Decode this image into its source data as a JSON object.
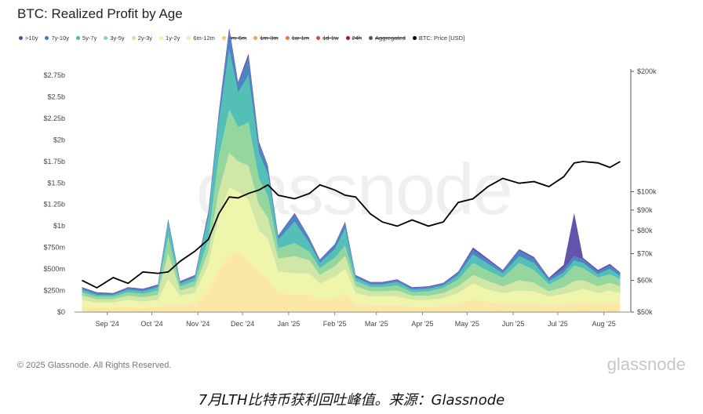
{
  "title": "BTC: Realized Profit by Age",
  "watermark": "glassnode",
  "copyright": "© 2025 Glassnode. All Rights Reserved.",
  "brand": "glassnode",
  "caption": "7月LTH比特币获利回吐峰值。来源：Glassnode",
  "legend": [
    {
      "label": ">10y",
      "color": "#5b4aa6",
      "active": true
    },
    {
      "label": "7y-10y",
      "color": "#3f7fbf",
      "active": true
    },
    {
      "label": "5y-7y",
      "color": "#4bbcb3",
      "active": true
    },
    {
      "label": "3y-5y",
      "color": "#8fd49a",
      "active": true
    },
    {
      "label": "2y-3y",
      "color": "#cfe6a0",
      "active": true
    },
    {
      "label": "1y-2y",
      "color": "#eef5a6",
      "active": true
    },
    {
      "label": "6m-12m",
      "color": "#fbe7a3",
      "active": true
    },
    {
      "label": "3m-6m",
      "color": "#f6c777",
      "active": false
    },
    {
      "label": "1m-3m",
      "color": "#f4a35c",
      "active": false
    },
    {
      "label": "1w-1m",
      "color": "#ee7547",
      "active": false
    },
    {
      "label": "1d-1w",
      "color": "#d9453c",
      "active": false
    },
    {
      "label": "24h",
      "color": "#a8153b",
      "active": false
    },
    {
      "label": "Aggregated",
      "color": "#555555",
      "active": false
    },
    {
      "label": "BTC: Price [USD]",
      "color": "#000000",
      "active": true
    }
  ],
  "chart_data": {
    "type": "area",
    "stacked": true,
    "x": [
      "2024-08-15",
      "2024-08-25",
      "2024-09-05",
      "2024-09-15",
      "2024-09-25",
      "2024-10-05",
      "2024-10-12",
      "2024-10-20",
      "2024-10-30",
      "2024-11-08",
      "2024-11-15",
      "2024-11-22",
      "2024-11-28",
      "2024-12-05",
      "2024-12-12",
      "2024-12-18",
      "2024-12-25",
      "2025-01-05",
      "2025-01-15",
      "2025-01-22",
      "2025-02-01",
      "2025-02-08",
      "2025-02-15",
      "2025-02-25",
      "2025-03-05",
      "2025-03-15",
      "2025-03-25",
      "2025-04-05",
      "2025-04-15",
      "2025-04-25",
      "2025-05-05",
      "2025-05-15",
      "2025-05-25",
      "2025-06-05",
      "2025-06-15",
      "2025-06-25",
      "2025-07-05",
      "2025-07-12",
      "2025-07-18",
      "2025-07-28",
      "2025-08-05",
      "2025-08-12"
    ],
    "series": [
      {
        "name": "6m-12m",
        "values": [
          0.06,
          0.05,
          0.05,
          0.06,
          0.05,
          0.06,
          0.08,
          0.09,
          0.1,
          0.25,
          0.5,
          0.65,
          0.7,
          0.6,
          0.45,
          0.4,
          0.22,
          0.2,
          0.2,
          0.15,
          0.16,
          0.22,
          0.1,
          0.08,
          0.08,
          0.08,
          0.06,
          0.06,
          0.07,
          0.1,
          0.15,
          0.12,
          0.1,
          0.1,
          0.1,
          0.08,
          0.09,
          0.1,
          0.12,
          0.1,
          0.11,
          0.1
        ]
      },
      {
        "name": "1y-2y",
        "values": [
          0.08,
          0.06,
          0.06,
          0.08,
          0.07,
          0.08,
          0.3,
          0.1,
          0.12,
          0.3,
          0.6,
          0.8,
          0.7,
          0.7,
          0.5,
          0.45,
          0.25,
          0.25,
          0.25,
          0.18,
          0.25,
          0.28,
          0.12,
          0.1,
          0.1,
          0.1,
          0.08,
          0.08,
          0.09,
          0.12,
          0.18,
          0.14,
          0.12,
          0.15,
          0.14,
          0.1,
          0.12,
          0.14,
          0.15,
          0.12,
          0.14,
          0.12
        ]
      },
      {
        "name": "2y-3y",
        "values": [
          0.05,
          0.04,
          0.04,
          0.05,
          0.05,
          0.06,
          0.3,
          0.06,
          0.08,
          0.15,
          0.3,
          0.4,
          0.35,
          0.4,
          0.3,
          0.25,
          0.15,
          0.2,
          0.15,
          0.1,
          0.12,
          0.15,
          0.08,
          0.06,
          0.06,
          0.07,
          0.05,
          0.05,
          0.06,
          0.08,
          0.1,
          0.1,
          0.08,
          0.12,
          0.1,
          0.06,
          0.08,
          0.12,
          0.1,
          0.08,
          0.09,
          0.08
        ]
      },
      {
        "name": "3y-5y",
        "values": [
          0.04,
          0.03,
          0.03,
          0.04,
          0.04,
          0.05,
          0.2,
          0.05,
          0.06,
          0.15,
          0.4,
          0.5,
          0.4,
          0.5,
          0.3,
          0.25,
          0.12,
          0.15,
          0.1,
          0.08,
          0.1,
          0.12,
          0.06,
          0.05,
          0.05,
          0.06,
          0.04,
          0.05,
          0.06,
          0.08,
          0.14,
          0.12,
          0.1,
          0.2,
          0.15,
          0.08,
          0.12,
          0.18,
          0.14,
          0.1,
          0.1,
          0.08
        ]
      },
      {
        "name": "5y-7y",
        "values": [
          0.03,
          0.02,
          0.02,
          0.03,
          0.03,
          0.04,
          0.15,
          0.03,
          0.04,
          0.25,
          0.4,
          0.7,
          0.4,
          0.55,
          0.3,
          0.25,
          0.1,
          0.25,
          0.1,
          0.06,
          0.1,
          0.2,
          0.04,
          0.03,
          0.03,
          0.04,
          0.03,
          0.03,
          0.03,
          0.05,
          0.1,
          0.08,
          0.05,
          0.08,
          0.08,
          0.04,
          0.05,
          0.06,
          0.06,
          0.04,
          0.06,
          0.04
        ]
      },
      {
        "name": "7y-10y",
        "values": [
          0.02,
          0.02,
          0.01,
          0.02,
          0.02,
          0.02,
          0.04,
          0.02,
          0.02,
          0.05,
          0.1,
          0.2,
          0.1,
          0.2,
          0.1,
          0.08,
          0.04,
          0.08,
          0.05,
          0.03,
          0.05,
          0.06,
          0.02,
          0.02,
          0.02,
          0.02,
          0.02,
          0.02,
          0.02,
          0.03,
          0.05,
          0.04,
          0.03,
          0.06,
          0.05,
          0.03,
          0.04,
          0.05,
          0.04,
          0.03,
          0.04,
          0.03
        ]
      },
      {
        "name": ">10y",
        "values": [
          0.01,
          0.01,
          0.01,
          0.01,
          0.01,
          0.01,
          0.01,
          0.01,
          0.01,
          0.02,
          0.02,
          0.05,
          0.02,
          0.05,
          0.03,
          0.02,
          0.01,
          0.02,
          0.01,
          0.01,
          0.01,
          0.02,
          0.01,
          0.01,
          0.01,
          0.01,
          0.01,
          0.01,
          0.01,
          0.01,
          0.03,
          0.02,
          0.01,
          0.02,
          0.02,
          0.01,
          0.05,
          0.5,
          0.02,
          0.02,
          0.02,
          0.01
        ]
      }
    ],
    "price": {
      "name": "BTC: Price [USD]",
      "values": [
        60000,
        57500,
        61000,
        59000,
        63000,
        62500,
        63000,
        67000,
        71000,
        76000,
        88000,
        97000,
        96500,
        99000,
        101000,
        104000,
        98000,
        96000,
        99000,
        104000,
        101000,
        98000,
        97000,
        88000,
        84000,
        82000,
        85000,
        82000,
        84000,
        94000,
        96000,
        103000,
        108000,
        105000,
        106000,
        103000,
        109000,
        118000,
        119000,
        118000,
        115000,
        119000
      ]
    },
    "y_left": {
      "ticks": [
        "$0",
        "$250m",
        "$500m",
        "$750m",
        "$1b",
        "$1.25b",
        "$1.5b",
        "$1.75b",
        "$2b",
        "$2.25b",
        "$2.5b",
        "$2.75b"
      ],
      "min": 0,
      "max": 2.75
    },
    "y_right": {
      "scale": "log",
      "ticks": [
        50000,
        60000,
        70000,
        80000,
        90000,
        100000,
        200000
      ],
      "tick_labels": [
        "$50k",
        "$60k",
        "$70k",
        "$80k",
        "$90k",
        "$100k",
        "$200k"
      ]
    },
    "x_ticks": [
      {
        "label": "Sep '24",
        "date": "2024-09-01"
      },
      {
        "label": "Oct '24",
        "date": "2024-10-01"
      },
      {
        "label": "Nov '24",
        "date": "2024-11-01"
      },
      {
        "label": "Dec '24",
        "date": "2024-12-01"
      },
      {
        "label": "Jan '25",
        "date": "2025-01-01"
      },
      {
        "label": "Feb '25",
        "date": "2025-02-01"
      },
      {
        "label": "Mar '25",
        "date": "2025-03-01"
      },
      {
        "label": "Apr '25",
        "date": "2025-04-01"
      },
      {
        "label": "May '25",
        "date": "2025-05-01"
      },
      {
        "label": "Jun '25",
        "date": "2025-06-01"
      },
      {
        "label": "Jul '25",
        "date": "2025-07-01"
      },
      {
        "label": "Aug '25",
        "date": "2025-08-01"
      }
    ],
    "legend_position": "top-left",
    "grid": false
  }
}
